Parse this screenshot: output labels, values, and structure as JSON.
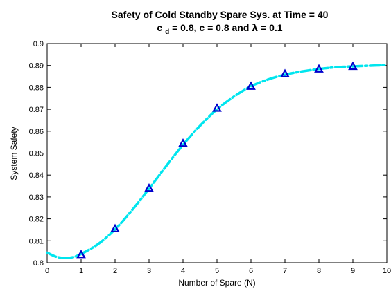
{
  "chart_data": {
    "type": "line",
    "title_line1": "Safety of Cold Standby Spare Sys. at Time = 40",
    "title_line2": {
      "part1": "c",
      "subscript": "d",
      "part2": " = 0.8, c = 0.8 and ",
      "lambda_symbol": "λ",
      "part3": " = 0.1"
    },
    "xlabel": "Number of Spare (N)",
    "ylabel": "System Safety",
    "xlim": [
      0,
      10
    ],
    "ylim": [
      0.8,
      0.9
    ],
    "x_ticks": [
      0,
      1,
      2,
      3,
      4,
      5,
      6,
      7,
      8,
      9,
      10
    ],
    "y_ticks": [
      0.8,
      0.81,
      0.82,
      0.83,
      0.84,
      0.85,
      0.86,
      0.87,
      0.88,
      0.89,
      0.9
    ],
    "y_tick_labels": [
      "0.8",
      "0.81",
      "0.82",
      "0.83",
      "0.84",
      "0.85",
      "0.86",
      "0.87",
      "0.88",
      "0.89",
      "0.9"
    ],
    "grid": false,
    "series": [
      {
        "style": "dash-dot",
        "color": "#00e5ee",
        "x": [
          0,
          0.25,
          0.5,
          0.75,
          1,
          1.5,
          2,
          2.5,
          3,
          3.5,
          4,
          4.5,
          5,
          5.5,
          6,
          6.5,
          7,
          7.5,
          8,
          8.5,
          9,
          9.5,
          10
        ],
        "y": [
          0.8046,
          0.8028,
          0.8022,
          0.8025,
          0.804,
          0.8085,
          0.8152,
          0.824,
          0.8338,
          0.844,
          0.8538,
          0.8625,
          0.87,
          0.8758,
          0.8805,
          0.8836,
          0.8858,
          0.8873,
          0.8884,
          0.8892,
          0.8896,
          0.8899,
          0.8902
        ]
      },
      {
        "style": "markers",
        "marker": "triangle",
        "color": "#0000cc",
        "x": [
          1,
          2,
          3,
          4,
          5,
          6,
          7,
          8,
          9
        ],
        "y": [
          0.8037,
          0.8155,
          0.834,
          0.8545,
          0.8705,
          0.8805,
          0.8862,
          0.8884,
          0.8896
        ]
      }
    ]
  }
}
